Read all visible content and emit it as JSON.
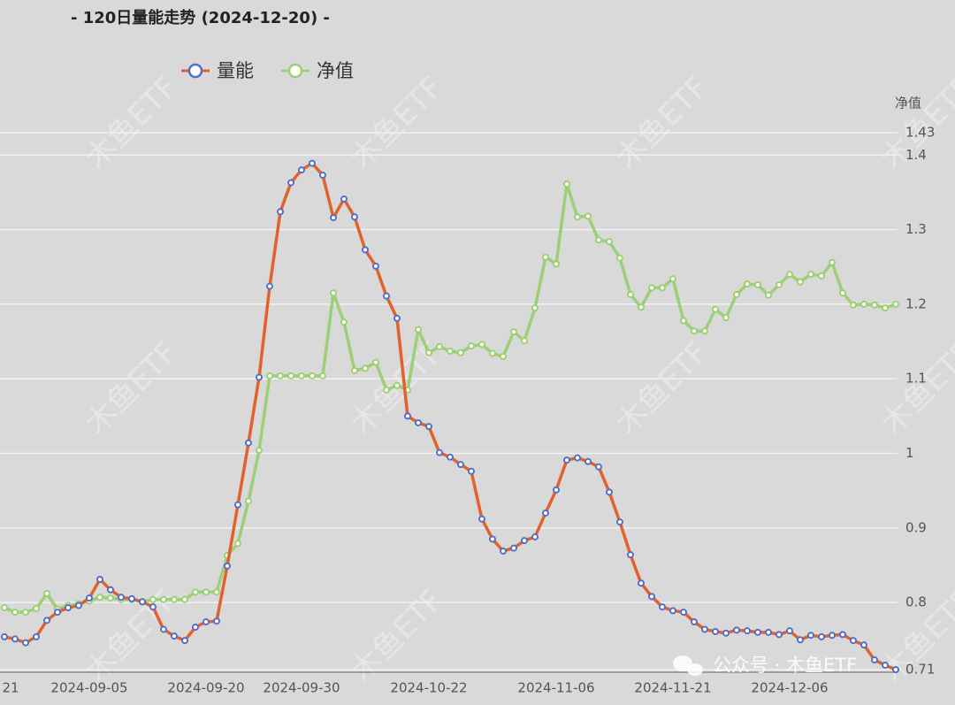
{
  "chart_data": {
    "type": "line",
    "title": "- 120日量能走势 (2024-12-20) -",
    "y_axis_label": "净值",
    "watermark": "木鱼ETF",
    "credit": "公众号 · 木鱼ETF",
    "categories": [
      "21",
      null,
      null,
      null,
      null,
      null,
      null,
      null,
      "2024-09-05",
      null,
      null,
      null,
      null,
      null,
      null,
      null,
      null,
      null,
      null,
      "2024-09-20",
      null,
      null,
      null,
      null,
      null,
      null,
      null,
      null,
      "2024-09-30",
      null,
      null,
      null,
      null,
      null,
      null,
      null,
      null,
      null,
      null,
      null,
      "2024-10-22",
      null,
      null,
      null,
      null,
      null,
      null,
      null,
      null,
      null,
      null,
      null,
      "2024-11-06",
      null,
      null,
      null,
      null,
      null,
      null,
      null,
      null,
      null,
      null,
      "2024-11-21",
      null,
      null,
      null,
      null,
      null,
      null,
      null,
      null,
      null,
      null,
      "2024-12-06",
      null,
      null,
      null,
      null,
      null,
      null,
      null,
      null,
      null,
      null
    ],
    "series": [
      {
        "name": "量能",
        "color": "#e2622b",
        "marker_color": "#5470c6",
        "values": [
          0.754,
          0.751,
          0.746,
          0.754,
          0.776,
          0.787,
          0.793,
          0.796,
          0.806,
          0.831,
          0.817,
          0.807,
          0.805,
          0.801,
          0.794,
          0.764,
          0.755,
          0.749,
          0.767,
          0.774,
          0.775,
          0.849,
          0.931,
          1.014,
          1.102,
          1.224,
          1.324,
          1.363,
          1.38,
          1.389,
          1.373,
          1.316,
          1.341,
          1.317,
          1.273,
          1.251,
          1.211,
          1.181,
          1.05,
          1.041,
          1.036,
          1.001,
          0.995,
          0.985,
          0.976,
          0.912,
          0.885,
          0.869,
          0.873,
          0.883,
          0.888,
          0.92,
          0.951,
          0.991,
          0.994,
          0.989,
          0.982,
          0.948,
          0.908,
          0.864,
          0.826,
          0.808,
          0.794,
          0.789,
          0.787,
          0.774,
          0.764,
          0.761,
          0.759,
          0.763,
          0.762,
          0.76,
          0.76,
          0.757,
          0.762,
          0.75,
          0.756,
          0.754,
          0.756,
          0.757,
          0.749,
          0.743,
          0.723,
          0.716,
          0.71
        ]
      },
      {
        "name": "净值",
        "color": "#9ccf76",
        "marker_color": "#9ccf76",
        "values": [
          0.793,
          0.787,
          0.787,
          0.792,
          0.812,
          0.791,
          0.796,
          0.798,
          0.802,
          0.807,
          0.806,
          0.804,
          0.804,
          0.801,
          0.804,
          0.804,
          0.804,
          0.804,
          0.814,
          0.814,
          0.814,
          0.863,
          0.879,
          0.936,
          1.004,
          1.104,
          1.104,
          1.104,
          1.104,
          1.104,
          1.104,
          1.215,
          1.176,
          1.111,
          1.114,
          1.122,
          1.085,
          1.091,
          1.085,
          1.166,
          1.135,
          1.143,
          1.137,
          1.135,
          1.144,
          1.146,
          1.134,
          1.13,
          1.163,
          1.151,
          1.195,
          1.263,
          1.254,
          1.361,
          1.317,
          1.318,
          1.286,
          1.284,
          1.262,
          1.213,
          1.196,
          1.222,
          1.222,
          1.234,
          1.178,
          1.164,
          1.164,
          1.193,
          1.182,
          1.213,
          1.227,
          1.226,
          1.212,
          1.226,
          1.24,
          1.23,
          1.24,
          1.238,
          1.256,
          1.215,
          1.199,
          1.2,
          1.199,
          1.195,
          1.2
        ]
      }
    ],
    "ylim": [
      0.71,
      1.43
    ],
    "yticks": [
      0.71,
      0.8,
      0.9,
      1,
      1.1,
      1.2,
      1.3,
      1.4,
      1.43
    ],
    "grid": true
  }
}
